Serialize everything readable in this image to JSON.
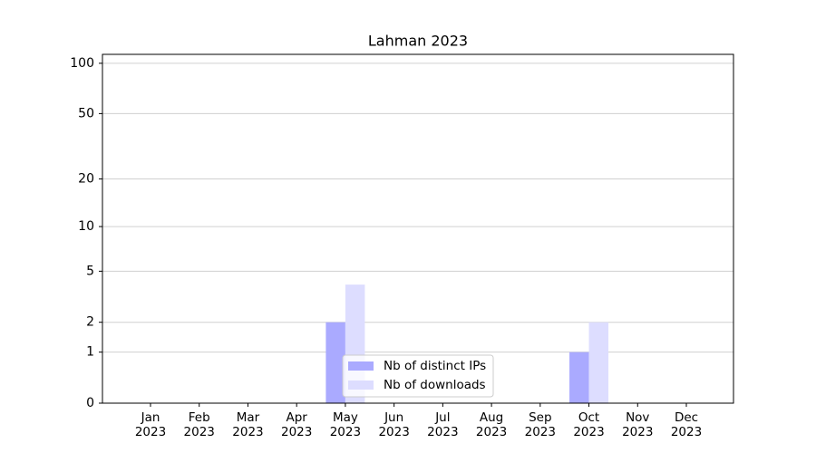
{
  "chart_data": {
    "type": "bar",
    "title": "Lahman 2023",
    "categories": [
      "Jan\n2023",
      "Feb\n2023",
      "Mar\n2023",
      "Apr\n2023",
      "May\n2023",
      "Jun\n2023",
      "Jul\n2023",
      "Aug\n2023",
      "Sep\n2023",
      "Oct\n2023",
      "Nov\n2023",
      "Dec\n2023"
    ],
    "series": [
      {
        "name": "Nb of distinct IPs",
        "color": "#aaaaff",
        "values": [
          0,
          0,
          0,
          0,
          2,
          0,
          0,
          0,
          0,
          1,
          0,
          0
        ]
      },
      {
        "name": "Nb of downloads",
        "color": "#ddddff",
        "values": [
          0,
          0,
          0,
          0,
          4,
          0,
          0,
          0,
          0,
          2,
          0,
          0
        ]
      }
    ],
    "yscale": "log1p",
    "ylim": [
      0,
      113
    ],
    "yticks": [
      0,
      1,
      2,
      5,
      10,
      20,
      50,
      100
    ],
    "grid": true,
    "legend": "lower center"
  }
}
